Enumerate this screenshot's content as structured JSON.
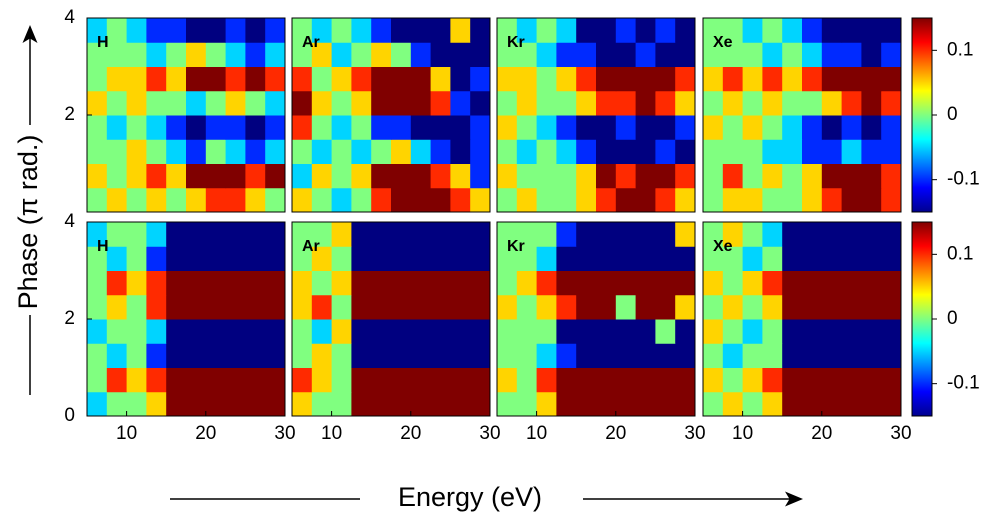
{
  "figure": {
    "xlabel": "Energy (eV)",
    "ylabel": "Phase (π rad.)"
  },
  "chart_data": [
    {
      "type": "heatmap",
      "title": "H",
      "xlim": [
        5,
        30
      ],
      "ylim": [
        0,
        4
      ],
      "yticks": [
        2,
        4
      ],
      "x_edges": [
        5,
        7.5,
        10,
        12.5,
        15,
        17.5,
        20,
        22.5,
        25,
        27.5,
        30
      ],
      "y_edges": [
        0,
        0.5,
        1,
        1.5,
        2,
        2.5,
        3,
        3.5,
        4
      ],
      "z": [
        [
          0,
          0.05,
          0,
          0.05,
          0,
          0.05,
          0.1,
          0.1,
          0.05,
          0
        ],
        [
          0.05,
          0,
          0.05,
          0.1,
          0.05,
          0.15,
          0.15,
          0.15,
          0.1,
          0.15
        ],
        [
          0,
          0,
          0.05,
          0,
          -0.05,
          -0.1,
          0,
          -0.05,
          -0.1,
          -0.05
        ],
        [
          0,
          -0.05,
          0,
          -0.05,
          -0.1,
          -0.15,
          -0.1,
          -0.1,
          -0.15,
          -0.1
        ],
        [
          0.05,
          0,
          0.05,
          0,
          0,
          -0.05,
          0,
          0.05,
          0,
          -0.05
        ],
        [
          0,
          0.05,
          0.05,
          0.1,
          0.05,
          0.15,
          0.15,
          0.1,
          0.15,
          0.1
        ],
        [
          0,
          0,
          0,
          -0.05,
          0,
          0.05,
          0,
          -0.05,
          -0.1,
          -0.05
        ],
        [
          -0.05,
          0,
          -0.05,
          -0.1,
          -0.1,
          -0.15,
          -0.15,
          -0.1,
          -0.15,
          -0.1
        ]
      ]
    },
    {
      "type": "heatmap",
      "title": "Ar",
      "xlim": [
        5,
        30
      ],
      "ylim": [
        0,
        4
      ],
      "x_edges": [
        5,
        7.5,
        10,
        12.5,
        15,
        17.5,
        20,
        22.5,
        25,
        27.5,
        30
      ],
      "y_edges": [
        0,
        0.5,
        1,
        1.5,
        2,
        2.5,
        3,
        3.5,
        4
      ],
      "z": [
        [
          0.05,
          0,
          -0.05,
          0,
          0.1,
          0.15,
          0.15,
          0.15,
          0.1,
          0.05
        ],
        [
          -0.05,
          0.05,
          0,
          0.05,
          0.15,
          0.15,
          0.15,
          0.1,
          0.05,
          -0.1
        ],
        [
          0,
          -0.05,
          0,
          -0.05,
          0,
          0.05,
          -0.05,
          -0.1,
          -0.15,
          -0.1
        ],
        [
          0.1,
          0,
          -0.05,
          0,
          -0.1,
          -0.1,
          -0.15,
          -0.15,
          -0.15,
          -0.1
        ],
        [
          0.15,
          0.05,
          0,
          0.05,
          0.15,
          0.15,
          0.15,
          0.1,
          -0.1,
          -0.15
        ],
        [
          0.1,
          0,
          0.05,
          0.1,
          0.15,
          0.15,
          0.15,
          0.05,
          -0.15,
          -0.1
        ],
        [
          0,
          0.05,
          -0.05,
          0,
          0.05,
          0,
          -0.1,
          -0.15,
          -0.15,
          -0.15
        ],
        [
          0,
          -0.05,
          0,
          -0.05,
          -0.1,
          -0.15,
          -0.15,
          -0.15,
          0.05,
          -0.15
        ]
      ]
    },
    {
      "type": "heatmap",
      "title": "Kr",
      "xlim": [
        5,
        30
      ],
      "ylim": [
        0,
        4
      ],
      "x_edges": [
        5,
        7.5,
        10,
        12.5,
        15,
        17.5,
        20,
        22.5,
        25,
        27.5,
        30
      ],
      "y_edges": [
        0,
        0.5,
        1,
        1.5,
        2,
        2.5,
        3,
        3.5,
        4
      ],
      "z": [
        [
          0,
          0.05,
          0,
          0,
          0.05,
          0.1,
          0.15,
          0.15,
          0.1,
          0.05
        ],
        [
          0.05,
          0,
          0,
          0,
          0.05,
          0.15,
          0.1,
          0.15,
          0.15,
          0.1
        ],
        [
          0,
          -0.05,
          0,
          -0.05,
          -0.1,
          -0.15,
          -0.15,
          -0.15,
          -0.1,
          -0.15
        ],
        [
          0.05,
          0,
          -0.05,
          -0.1,
          -0.15,
          -0.15,
          -0.1,
          -0.15,
          -0.15,
          -0.1
        ],
        [
          0,
          0.05,
          0,
          0,
          0.05,
          0.1,
          0.1,
          0.15,
          0.1,
          0.05
        ],
        [
          0.05,
          0.05,
          0,
          0.05,
          0.1,
          0.15,
          0.15,
          0.15,
          0.15,
          0.1
        ],
        [
          0,
          0,
          -0.05,
          -0.1,
          -0.1,
          -0.15,
          -0.15,
          -0.1,
          -0.15,
          -0.15
        ],
        [
          0,
          -0.05,
          0,
          -0.05,
          -0.15,
          -0.15,
          -0.1,
          -0.15,
          -0.1,
          -0.15
        ]
      ]
    },
    {
      "type": "heatmap",
      "title": "Xe",
      "xlim": [
        5,
        30
      ],
      "ylim": [
        0,
        4
      ],
      "x_edges": [
        5,
        7.5,
        10,
        12.5,
        15,
        17.5,
        20,
        22.5,
        25,
        27.5,
        30
      ],
      "y_edges": [
        0,
        0.5,
        1,
        1.5,
        2,
        2.5,
        3,
        3.5,
        4
      ],
      "colorbar": {
        "zlim": [
          -0.15,
          0.15
        ],
        "zticks": [
          -0.1,
          0,
          0.1
        ]
      },
      "z": [
        [
          0,
          0.05,
          0.05,
          0,
          0,
          0.05,
          0.1,
          0.15,
          0.15,
          0.1
        ],
        [
          0,
          0.1,
          0,
          0.05,
          0,
          0.05,
          0.15,
          0.15,
          0.15,
          0.1
        ],
        [
          0,
          0,
          0,
          -0.05,
          -0.05,
          -0.1,
          -0.1,
          -0.05,
          -0.1,
          -0.1
        ],
        [
          0.05,
          0,
          0.05,
          0,
          -0.05,
          -0.1,
          -0.15,
          -0.1,
          -0.15,
          -0.1
        ],
        [
          0,
          0.05,
          0,
          0.05,
          0,
          0,
          0.05,
          0.1,
          0.15,
          0.1
        ],
        [
          0.05,
          0.1,
          0.05,
          0.1,
          0.05,
          0.1,
          0.15,
          0.15,
          0.15,
          0.15
        ],
        [
          0,
          0,
          0,
          -0.05,
          0,
          -0.05,
          -0.1,
          -0.1,
          -0.15,
          -0.1
        ],
        [
          0,
          0,
          -0.05,
          0,
          -0.05,
          -0.1,
          -0.15,
          -0.15,
          -0.15,
          -0.15
        ]
      ]
    },
    {
      "type": "heatmap",
      "title": "H",
      "xlim": [
        5,
        30
      ],
      "ylim": [
        0,
        4
      ],
      "xticks": [
        10,
        20,
        30
      ],
      "yticks": [
        0,
        2,
        4
      ],
      "x_edges": [
        5,
        7.5,
        10,
        12.5,
        15,
        17.5,
        20,
        22.5,
        25,
        27.5,
        30
      ],
      "y_edges": [
        0,
        0.5,
        1,
        1.5,
        2,
        2.5,
        3,
        3.5,
        4
      ],
      "z": [
        [
          -0.05,
          0,
          0,
          0.05,
          0.15,
          0.15,
          0.15,
          0.15,
          0.15,
          0.15
        ],
        [
          0,
          0.1,
          0.05,
          0.1,
          0.15,
          0.15,
          0.15,
          0.15,
          0.15,
          0.15
        ],
        [
          0,
          -0.05,
          0,
          -0.1,
          -0.15,
          -0.15,
          -0.15,
          -0.15,
          -0.15,
          -0.15
        ],
        [
          -0.05,
          0,
          0,
          -0.05,
          -0.15,
          -0.15,
          -0.15,
          -0.15,
          -0.15,
          -0.15
        ],
        [
          0,
          0.05,
          0,
          0.1,
          0.15,
          0.15,
          0.15,
          0.15,
          0.15,
          0.15
        ],
        [
          0,
          0.1,
          0.05,
          0.1,
          0.15,
          0.15,
          0.15,
          0.15,
          0.15,
          0.15
        ],
        [
          0,
          -0.05,
          0,
          -0.1,
          -0.15,
          -0.15,
          -0.15,
          -0.15,
          -0.15,
          -0.15
        ],
        [
          -0.05,
          0,
          0,
          -0.05,
          -0.15,
          -0.15,
          -0.15,
          -0.15,
          -0.15,
          -0.15
        ]
      ]
    },
    {
      "type": "heatmap",
      "title": "Ar",
      "xlim": [
        5,
        30
      ],
      "ylim": [
        0,
        4
      ],
      "xticks": [
        10,
        20,
        30
      ],
      "x_edges": [
        5,
        7.5,
        10,
        12.5,
        15,
        17.5,
        20,
        22.5,
        25,
        27.5,
        30
      ],
      "y_edges": [
        0,
        0.5,
        1,
        1.5,
        2,
        2.5,
        3,
        3.5,
        4
      ],
      "z": [
        [
          0.05,
          0,
          0,
          0.15,
          0.15,
          0.15,
          0.15,
          0.15,
          0.15,
          0.15
        ],
        [
          0.1,
          0.05,
          0,
          0.15,
          0.15,
          0.15,
          0.15,
          0.15,
          0.15,
          0.15
        ],
        [
          0,
          0.05,
          0,
          -0.15,
          -0.15,
          -0.15,
          -0.15,
          -0.15,
          -0.15,
          -0.15
        ],
        [
          0,
          -0.05,
          0.05,
          -0.15,
          -0.15,
          -0.15,
          -0.15,
          -0.15,
          -0.15,
          -0.15
        ],
        [
          0.05,
          0.1,
          0,
          0.15,
          0.15,
          0.15,
          0.15,
          0.15,
          0.15,
          0.15
        ],
        [
          0.05,
          0,
          0.05,
          0.15,
          0.15,
          0.15,
          0.15,
          0.15,
          0.15,
          0.15
        ],
        [
          0,
          0.05,
          0,
          -0.15,
          -0.15,
          -0.15,
          -0.15,
          -0.15,
          -0.15,
          -0.15
        ],
        [
          0,
          0,
          0.05,
          -0.15,
          -0.15,
          -0.15,
          -0.15,
          -0.15,
          -0.15,
          -0.15
        ]
      ]
    },
    {
      "type": "heatmap",
      "title": "Kr",
      "xlim": [
        5,
        30
      ],
      "ylim": [
        0,
        4
      ],
      "xticks": [
        10,
        20,
        30
      ],
      "x_edges": [
        5,
        7.5,
        10,
        12.5,
        15,
        17.5,
        20,
        22.5,
        25,
        27.5,
        30
      ],
      "y_edges": [
        0,
        0.5,
        1,
        1.5,
        2,
        2.5,
        3,
        3.5,
        4
      ],
      "z": [
        [
          0,
          0,
          0.05,
          0.15,
          0.15,
          0.15,
          0.15,
          0.15,
          0.15,
          0.15
        ],
        [
          0.05,
          0,
          0.1,
          0.15,
          0.15,
          0.15,
          0.15,
          0.15,
          0.15,
          0.15
        ],
        [
          0,
          0,
          -0.05,
          -0.1,
          -0.15,
          -0.15,
          -0.15,
          -0.15,
          -0.15,
          -0.15
        ],
        [
          0,
          0,
          0,
          -0.15,
          -0.15,
          -0.15,
          -0.15,
          -0.15,
          0,
          -0.15
        ],
        [
          0.05,
          0,
          0.05,
          0.1,
          0.15,
          0.15,
          0,
          0.15,
          0.15,
          0.05
        ],
        [
          0,
          0.05,
          0.1,
          0.15,
          0.15,
          0.15,
          0.15,
          0.15,
          0.15,
          0.15
        ],
        [
          0,
          0,
          -0.05,
          -0.15,
          -0.15,
          -0.15,
          -0.15,
          -0.15,
          -0.15,
          -0.15
        ],
        [
          0,
          0,
          0,
          -0.1,
          -0.15,
          -0.15,
          -0.15,
          -0.15,
          -0.15,
          0.05
        ]
      ]
    },
    {
      "type": "heatmap",
      "title": "Xe",
      "xlim": [
        5,
        30
      ],
      "ylim": [
        0,
        4
      ],
      "xticks": [
        10,
        20,
        30
      ],
      "x_edges": [
        5,
        7.5,
        10,
        12.5,
        15,
        17.5,
        20,
        22.5,
        25,
        27.5,
        30
      ],
      "y_edges": [
        0,
        0.5,
        1,
        1.5,
        2,
        2.5,
        3,
        3.5,
        4
      ],
      "colorbar": {
        "zlim": [
          -0.15,
          0.15
        ],
        "zticks": [
          -0.1,
          0,
          0.1
        ]
      },
      "z": [
        [
          0,
          0.05,
          0,
          0.05,
          0.15,
          0.15,
          0.15,
          0.15,
          0.15,
          0.15
        ],
        [
          0.05,
          0,
          0.05,
          0.1,
          0.15,
          0.15,
          0.15,
          0.15,
          0.15,
          0.15
        ],
        [
          0,
          -0.05,
          0,
          0,
          -0.15,
          -0.15,
          -0.15,
          -0.15,
          -0.15,
          -0.15
        ],
        [
          0.05,
          0,
          -0.05,
          0,
          -0.15,
          -0.15,
          -0.15,
          -0.15,
          -0.15,
          -0.15
        ],
        [
          0,
          0.05,
          0,
          0.05,
          0.15,
          0.15,
          0.15,
          0.15,
          0.15,
          0.15
        ],
        [
          0.05,
          0,
          0.05,
          0.1,
          0.15,
          0.15,
          0.15,
          0.15,
          0.15,
          0.15
        ],
        [
          0,
          0,
          -0.05,
          0,
          -0.15,
          -0.15,
          -0.15,
          -0.15,
          -0.15,
          -0.15
        ],
        [
          0,
          0.05,
          0,
          -0.05,
          -0.15,
          -0.15,
          -0.15,
          -0.15,
          -0.15,
          -0.15
        ]
      ]
    }
  ]
}
